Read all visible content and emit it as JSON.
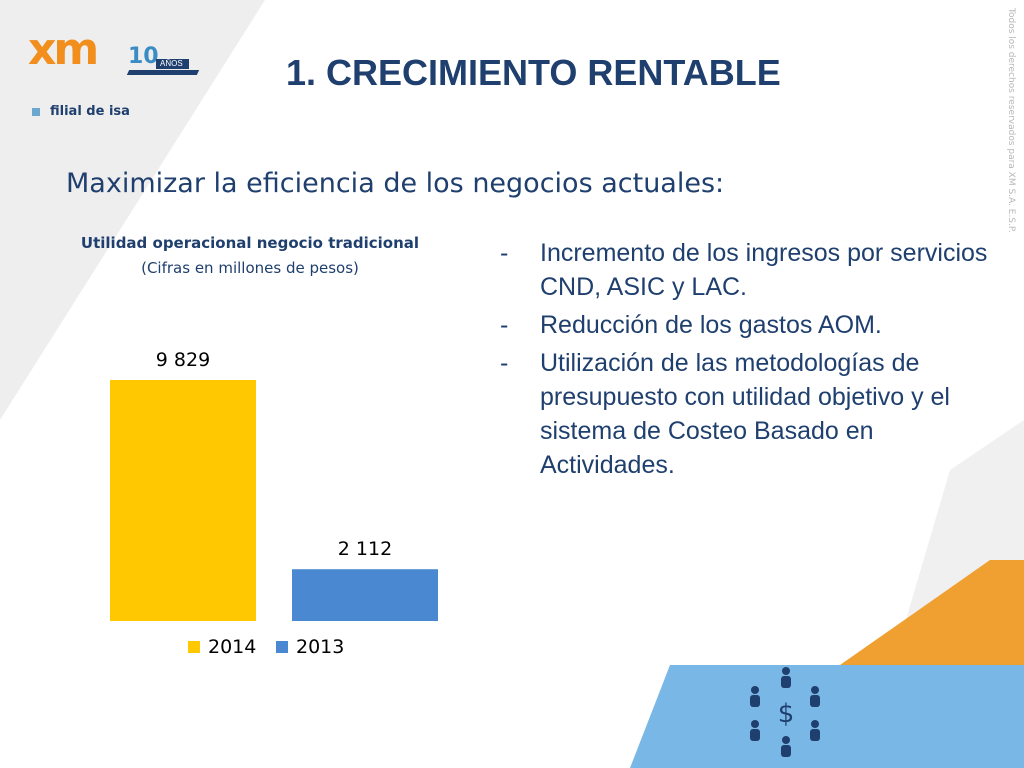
{
  "logo": {
    "brand": "xm",
    "anniversary_number": "10",
    "anniversary_word": "AÑOS",
    "parent": "filial de isa"
  },
  "title": "1. CRECIMIENTO RENTABLE",
  "copyright": "Todos los derechos reservados para XM S.A. E.S.P.",
  "subtitle": "Maximizar la eficiencia de los negocios actuales:",
  "bullets": [
    {
      "marker": "-",
      "text": "Incremento de los ingresos por servicios CND, ASIC y LAC."
    },
    {
      "marker": "-",
      "text": "Reducción de los gastos AOM."
    },
    {
      "marker": "-",
      "text": "Utilización de las metodologías de presupuesto con utilidad objetivo y el sistema de Costeo Basado en Actividades."
    }
  ],
  "chart_data": {
    "type": "bar",
    "title": "Utilidad operacional negocio tradicional",
    "subtitle": "(Cifras en millones de pesos)",
    "series": [
      {
        "name": "2014",
        "value": 9829,
        "label": "9 829",
        "color": "#ffc800"
      },
      {
        "name": "2013",
        "value": 2112,
        "label": "2 112",
        "color": "#4a89d2"
      }
    ],
    "ylim": [
      0,
      9829
    ],
    "grid": false,
    "legend_position": "bottom"
  },
  "decoration": {
    "icon": "people-around-dollar-icon",
    "dollar_symbol": "$",
    "colors": {
      "title": "#1f3f6e",
      "orange_band": "#f0a030",
      "blue_band": "#79b8e6",
      "gray_band": "#eeeeee",
      "figure": "#1f3f6e"
    }
  }
}
